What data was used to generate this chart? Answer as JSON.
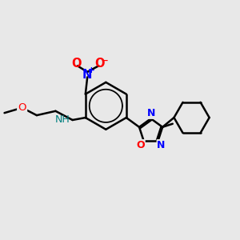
{
  "bg_color": "#e8e8e8",
  "bond_color": "#000000",
  "bond_width": 1.8,
  "N_color": "#0000ff",
  "O_color": "#ff0000",
  "NH_color": "#008080",
  "font_size": 8.5,
  "fig_width": 3.0,
  "fig_height": 3.0,
  "dpi": 100,
  "xlim": [
    0,
    10
  ],
  "ylim": [
    0,
    10
  ]
}
